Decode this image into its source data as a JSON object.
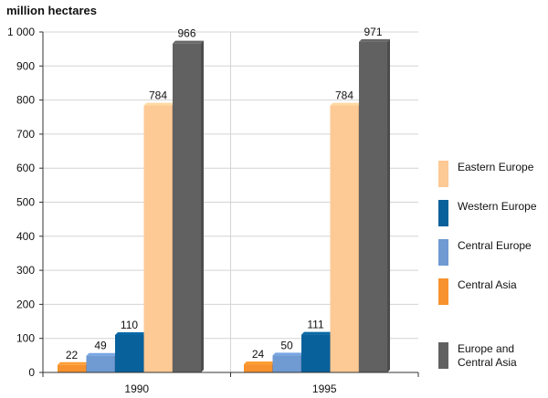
{
  "unit_label": "million hectares",
  "chart_data": {
    "type": "bar",
    "categories": [
      "1990",
      "1995"
    ],
    "ylim": [
      0,
      1000
    ],
    "yticks": [
      {
        "value": 0,
        "label": "0"
      },
      {
        "value": 100,
        "label": "100"
      },
      {
        "value": 200,
        "label": "200"
      },
      {
        "value": 300,
        "label": "300"
      },
      {
        "value": 400,
        "label": "400"
      },
      {
        "value": 500,
        "label": "500"
      },
      {
        "value": 600,
        "label": "600"
      },
      {
        "value": 700,
        "label": "700"
      },
      {
        "value": 800,
        "label": "800"
      },
      {
        "value": 900,
        "label": "900"
      },
      {
        "value": 1000,
        "label": "1 000"
      }
    ],
    "grid": true,
    "legend_position": "right",
    "series": [
      {
        "name": "Central Asia",
        "color": "#f7922e",
        "values": [
          22,
          24
        ],
        "value_labels": [
          "22",
          "24"
        ]
      },
      {
        "name": "Central Europe",
        "color": "#6f9ad2",
        "values": [
          49,
          50
        ],
        "value_labels": [
          "49",
          "50"
        ]
      },
      {
        "name": "Western Europe",
        "color": "#08619b",
        "values": [
          110,
          111
        ],
        "value_labels": [
          "110",
          "111"
        ]
      },
      {
        "name": "Eastern Europe",
        "color": "#fdc995",
        "values": [
          784,
          784
        ],
        "value_labels": [
          "784",
          "784"
        ]
      },
      {
        "name": "Europe and\nCentral Asia",
        "color": "#616161",
        "values": [
          966,
          971
        ],
        "value_labels": [
          "966",
          "971"
        ]
      }
    ]
  },
  "legend": [
    {
      "label": "Eastern Europe",
      "color": "#fdc995"
    },
    {
      "label": "Western Europe",
      "color": "#08619b"
    },
    {
      "label": "Central Europe",
      "color": "#6f9ad2"
    },
    {
      "label": "Central Asia",
      "color": "#f7922e"
    },
    {
      "label": "Europe and\nCentral Asia",
      "color": "#616161"
    }
  ]
}
